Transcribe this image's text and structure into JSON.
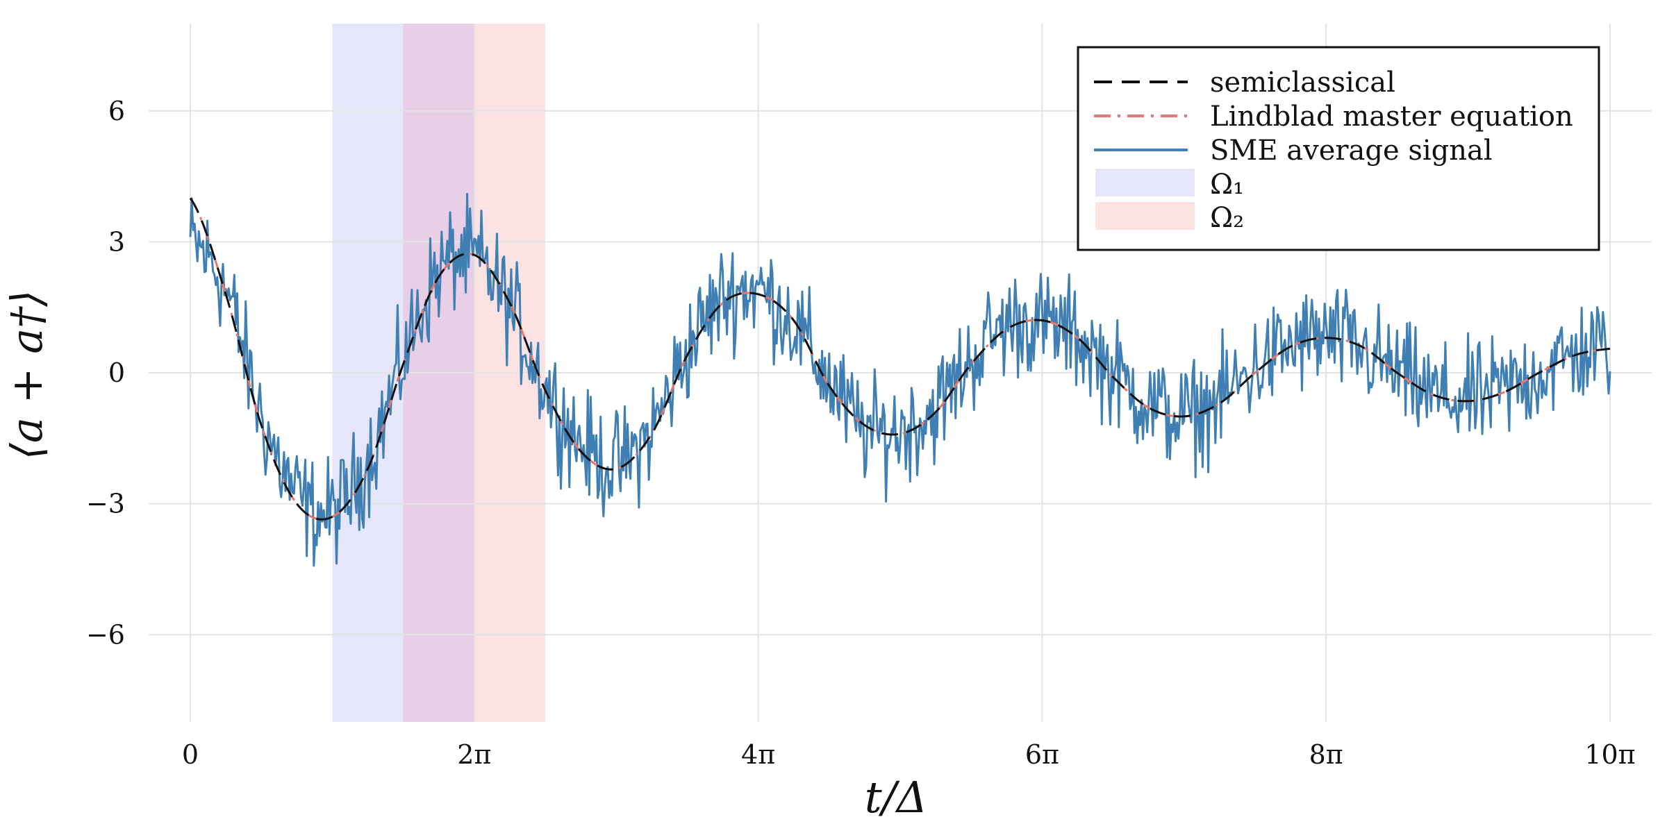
{
  "chart_data": {
    "type": "line",
    "title": "",
    "xlabel": "t/Δ",
    "ylabel": "⟨a + a†⟩",
    "xlim": [
      0,
      10
    ],
    "ylim": [
      -8,
      8
    ],
    "x_unit": "π",
    "grid": true,
    "legend_position": "top-right",
    "x_ticks": [
      0,
      2,
      4,
      6,
      8,
      10
    ],
    "x_tick_labels": [
      "0",
      "2π",
      "4π",
      "6π",
      "8π",
      "10π"
    ],
    "y_ticks": [
      -6,
      -3,
      0,
      3,
      6
    ],
    "y_tick_labels": [
      "−6",
      "−3",
      "0",
      "3",
      "6"
    ],
    "bands": [
      {
        "name": "Ω₁",
        "x_start": 1.0,
        "x_end": 2.0,
        "color": "#e6e6fb"
      },
      {
        "name": "Ω₂",
        "x_start": 1.5,
        "x_end": 2.5,
        "color": "#fbe3e3"
      }
    ],
    "overlap_color": "#e8cfe6",
    "series": [
      {
        "name": "semiclassical",
        "style": "dashed",
        "color": "#111111",
        "x": [
          0,
          0.25,
          0.5,
          0.75,
          1,
          1.25,
          1.5,
          1.75,
          2,
          2.25,
          2.5,
          2.75,
          3,
          3.25,
          3.5,
          3.75,
          4,
          4.25,
          4.5,
          4.75,
          5,
          5.25,
          5.5,
          5.75,
          6,
          6.25,
          6.5,
          6.75,
          7,
          7.25,
          7.5,
          7.75,
          8,
          8.25,
          8.5,
          8.75,
          9,
          9.25,
          9.5,
          9.75,
          10
        ],
        "values": [
          4.0,
          1.8,
          -1.2,
          -3.0,
          -3.3,
          -2.2,
          0.2,
          2.2,
          2.7,
          1.6,
          -0.4,
          -1.8,
          -2.2,
          -1.4,
          0.4,
          1.6,
          1.8,
          1.2,
          -0.3,
          -1.2,
          -1.4,
          -0.9,
          0.2,
          1.0,
          1.2,
          0.8,
          -0.1,
          -0.8,
          -1.0,
          -0.7,
          0.0,
          0.6,
          0.8,
          0.6,
          0.0,
          -0.5,
          -0.65,
          -0.45,
          0.0,
          0.4,
          0.55
        ]
      },
      {
        "name": "Lindblad master equation",
        "style": "dashdot",
        "color": "#e8766b",
        "x": [
          0,
          0.25,
          0.5,
          0.75,
          1,
          1.25,
          1.5,
          1.75,
          2,
          2.25,
          2.5,
          2.75,
          3,
          3.25,
          3.5,
          3.75,
          4,
          4.25,
          4.5,
          4.75,
          5,
          5.25,
          5.5,
          5.75,
          6,
          6.25,
          6.5,
          6.75,
          7,
          7.25,
          7.5,
          7.75,
          8,
          8.25,
          8.5,
          8.75,
          9,
          9.25,
          9.5,
          9.75,
          10
        ],
        "values": [
          4.0,
          1.8,
          -1.2,
          -3.0,
          -3.3,
          -2.2,
          0.2,
          2.2,
          2.7,
          1.6,
          -0.4,
          -1.8,
          -2.2,
          -1.4,
          0.4,
          1.6,
          1.8,
          1.2,
          -0.3,
          -1.2,
          -1.4,
          -0.9,
          0.2,
          1.0,
          1.2,
          0.8,
          -0.1,
          -0.8,
          -1.0,
          -0.7,
          0.0,
          0.6,
          0.8,
          0.6,
          0.0,
          -0.5,
          -0.65,
          -0.45,
          0.0,
          0.4,
          0.55
        ]
      },
      {
        "name": "SME average signal",
        "style": "solid",
        "color": "#3f7fb3",
        "x": [
          0,
          0.25,
          0.5,
          0.75,
          1,
          1.25,
          1.5,
          1.75,
          2,
          2.25,
          2.5,
          2.75,
          3,
          3.25,
          3.5,
          3.75,
          4,
          4.25,
          4.5,
          4.75,
          5,
          5.25,
          5.5,
          5.75,
          6,
          6.25,
          6.5,
          6.75,
          7,
          7.25,
          7.5,
          7.75,
          8,
          8.25,
          8.5,
          8.75,
          9,
          9.25,
          9.5,
          9.75,
          10
        ],
        "values": [
          3.0,
          1.9,
          -1.0,
          -2.8,
          -3.2,
          -2.0,
          0.3,
          2.3,
          2.6,
          1.5,
          -0.3,
          -1.6,
          -2.1,
          -1.3,
          0.5,
          1.7,
          1.9,
          1.1,
          -0.2,
          -1.3,
          -1.3,
          -0.8,
          0.3,
          1.1,
          1.1,
          0.8,
          0.0,
          -0.7,
          -1.0,
          -0.6,
          0.1,
          0.6,
          0.8,
          0.5,
          0.0,
          -0.5,
          -0.6,
          -0.4,
          0.0,
          0.4,
          0.6
        ],
        "noise_amplitude": 0.6
      }
    ]
  },
  "legend": {
    "items": [
      {
        "label": "semiclassical"
      },
      {
        "label": "Lindblad master equation"
      },
      {
        "label": "SME average signal"
      },
      {
        "label": "Ω₁"
      },
      {
        "label": "Ω₂"
      }
    ]
  },
  "colors": {
    "grid": "#e3e3e3",
    "axis_text": "#111111",
    "legend_border": "#111111"
  }
}
